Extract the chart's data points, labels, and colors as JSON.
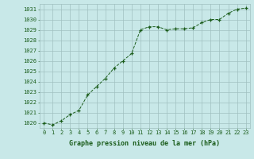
{
  "x": [
    0,
    1,
    2,
    3,
    4,
    5,
    6,
    7,
    8,
    9,
    10,
    11,
    12,
    13,
    14,
    15,
    16,
    17,
    18,
    19,
    20,
    21,
    22,
    23
  ],
  "y": [
    1020.0,
    1019.8,
    1020.2,
    1020.8,
    1021.2,
    1022.7,
    1023.5,
    1024.3,
    1025.3,
    1026.0,
    1026.7,
    1029.0,
    1029.3,
    1029.3,
    1029.0,
    1029.1,
    1029.1,
    1029.2,
    1029.7,
    1030.0,
    1030.0,
    1030.6,
    1031.0,
    1031.1
  ],
  "ylim": [
    1019.5,
    1031.5
  ],
  "yticks": [
    1020,
    1021,
    1022,
    1023,
    1024,
    1025,
    1026,
    1027,
    1028,
    1029,
    1030,
    1031
  ],
  "xticks": [
    0,
    1,
    2,
    3,
    4,
    5,
    6,
    7,
    8,
    9,
    10,
    11,
    12,
    13,
    14,
    15,
    16,
    17,
    18,
    19,
    20,
    21,
    22,
    23
  ],
  "xlabel": "Graphe pression niveau de la mer (hPa)",
  "line_color": "#1a5c1a",
  "marker": "+",
  "marker_color": "#1a5c1a",
  "bg_color": "#c8e8e8",
  "grid_color": "#a0c0c0",
  "label_color": "#1a5c1a",
  "tick_label_fontsize": 5.0,
  "xlabel_fontsize": 6.0
}
